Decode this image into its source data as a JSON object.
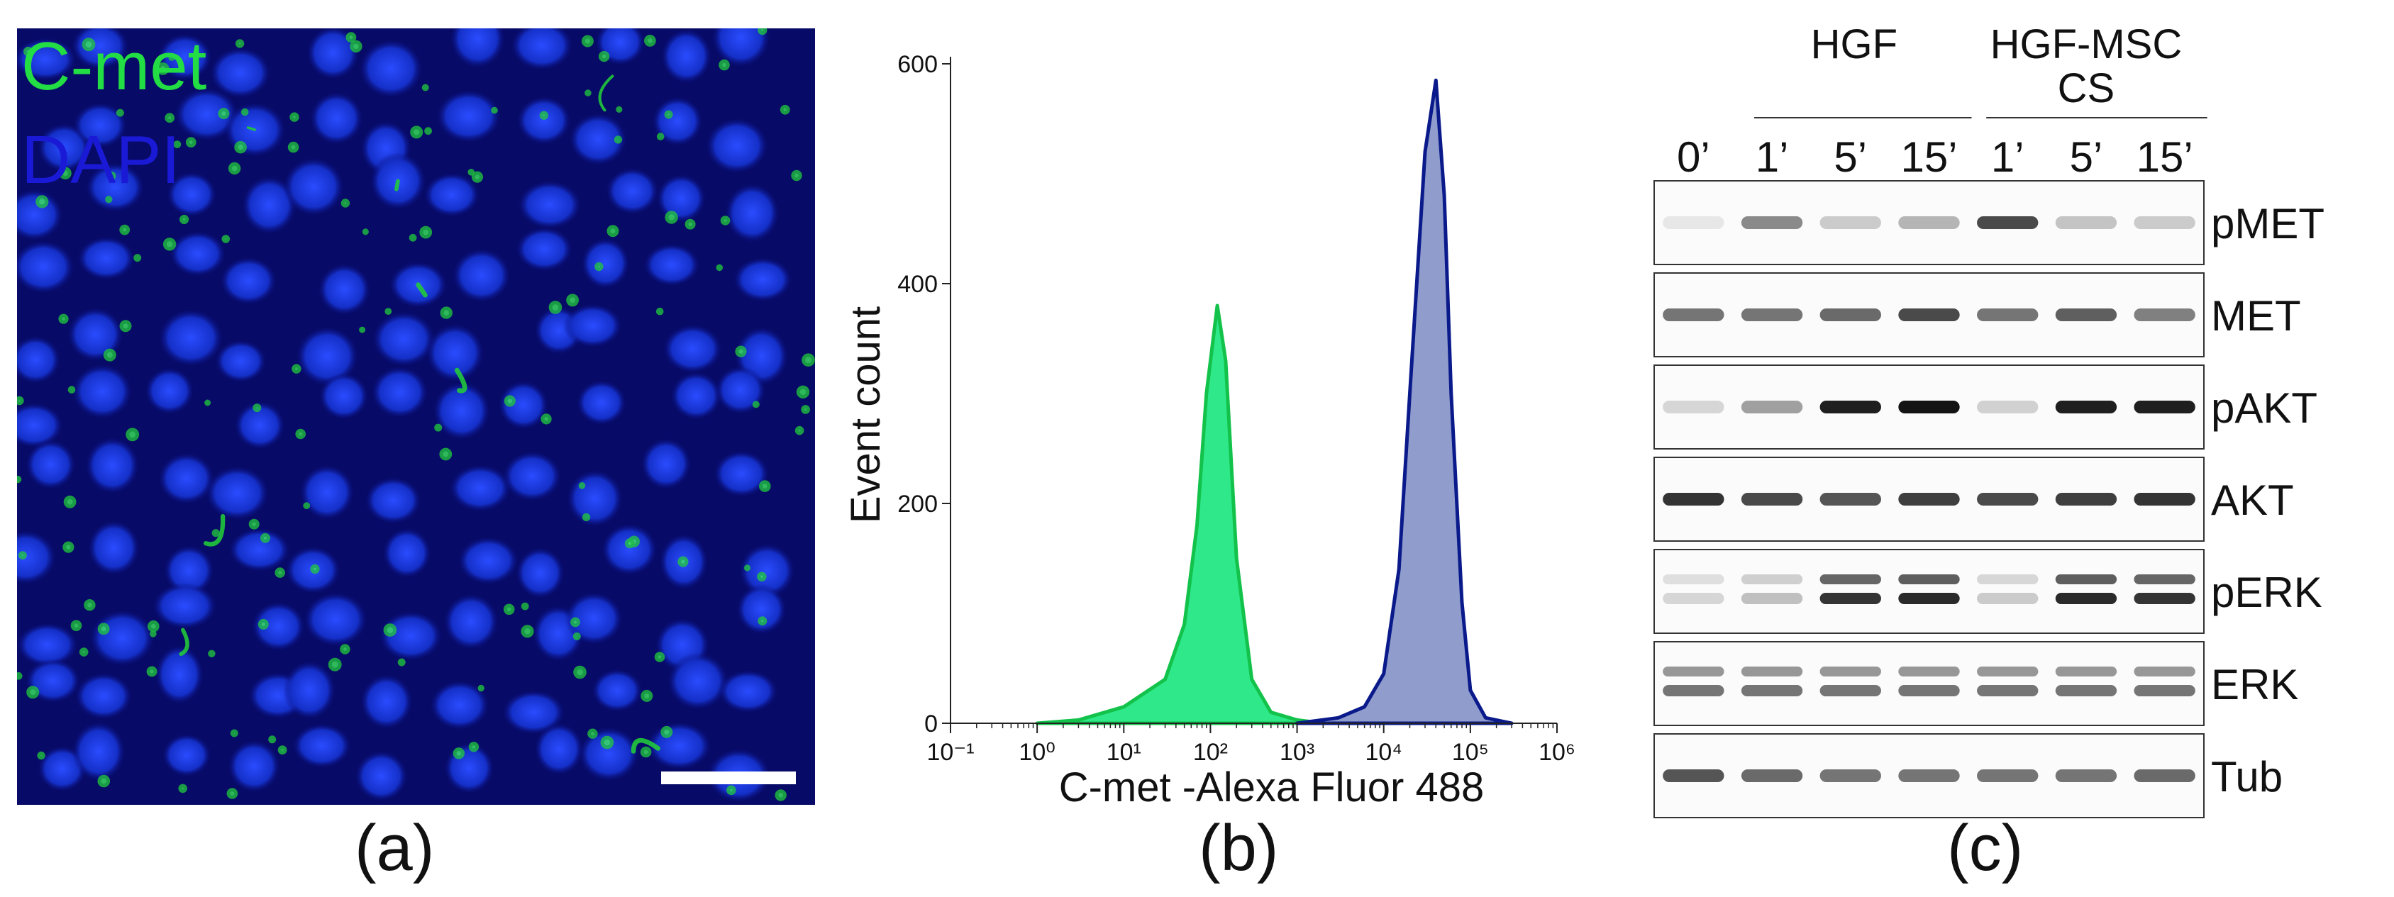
{
  "panel_a": {
    "label": "(a)",
    "legend": [
      {
        "text": "C-met",
        "color": "#22dd44"
      },
      {
        "text": "DAPI",
        "color": "#1a1ad6"
      }
    ]
  },
  "panel_b": {
    "label": "(b)",
    "chart_data": {
      "type": "area",
      "xlabel": "C-met -Alexa Fluor 488",
      "ylabel": "Event count",
      "x_scale": "log",
      "xlim": [
        0.1,
        1000000
      ],
      "ylim": [
        0,
        600
      ],
      "x_ticks": [
        "10⁻¹",
        "10⁰",
        "10¹",
        "10²",
        "10³",
        "10⁴",
        "10⁵",
        "10⁶"
      ],
      "y_ticks": [
        "0",
        "200",
        "400",
        "600"
      ],
      "series": [
        {
          "color": "#2ee88a",
          "edge": "#13c24a",
          "points": [
            [
              1,
              0
            ],
            [
              3,
              3
            ],
            [
              10,
              15
            ],
            [
              30,
              40
            ],
            [
              50,
              90
            ],
            [
              70,
              180
            ],
            [
              90,
              300
            ],
            [
              120,
              380
            ],
            [
              150,
              330
            ],
            [
              200,
              150
            ],
            [
              300,
              40
            ],
            [
              500,
              10
            ],
            [
              1000,
              3
            ],
            [
              2000,
              0
            ]
          ]
        },
        {
          "color": "#8f9ccc",
          "edge": "#0a1a8a",
          "points": [
            [
              1000,
              0
            ],
            [
              3000,
              5
            ],
            [
              6000,
              15
            ],
            [
              10000,
              45
            ],
            [
              15000,
              140
            ],
            [
              20000,
              300
            ],
            [
              30000,
              520
            ],
            [
              40000,
              585
            ],
            [
              50000,
              480
            ],
            [
              60000,
              300
            ],
            [
              80000,
              110
            ],
            [
              100000,
              30
            ],
            [
              150000,
              5
            ],
            [
              300000,
              0
            ]
          ]
        }
      ]
    }
  },
  "panel_c": {
    "label": "(c)",
    "groups": [
      "HGF",
      "HGF-MSC\nCS"
    ],
    "lanes": [
      "0’",
      "1’",
      "5’",
      "15’",
      "1’",
      "5’",
      "15’"
    ],
    "blots": [
      {
        "name": "pMET",
        "intensity": [
          0.02,
          0.45,
          0.15,
          0.25,
          0.75,
          0.18,
          0.15
        ],
        "double": false
      },
      {
        "name": "MET",
        "intensity": [
          0.55,
          0.55,
          0.6,
          0.75,
          0.55,
          0.65,
          0.5
        ],
        "double": false
      },
      {
        "name": "pAKT",
        "intensity": [
          0.1,
          0.35,
          0.95,
          1.0,
          0.12,
          0.95,
          0.95
        ],
        "double": false
      },
      {
        "name": "AKT",
        "intensity": [
          0.85,
          0.75,
          0.7,
          0.8,
          0.75,
          0.8,
          0.85
        ],
        "double": false
      },
      {
        "name": "pERK",
        "intensity": [
          0.1,
          0.2,
          0.85,
          0.9,
          0.15,
          0.9,
          0.85
        ],
        "double": true
      },
      {
        "name": "ERK",
        "intensity": [
          0.55,
          0.55,
          0.55,
          0.55,
          0.55,
          0.55,
          0.55
        ],
        "double": true
      },
      {
        "name": "Tub",
        "intensity": [
          0.7,
          0.6,
          0.55,
          0.55,
          0.55,
          0.55,
          0.6
        ],
        "double": false
      }
    ]
  }
}
